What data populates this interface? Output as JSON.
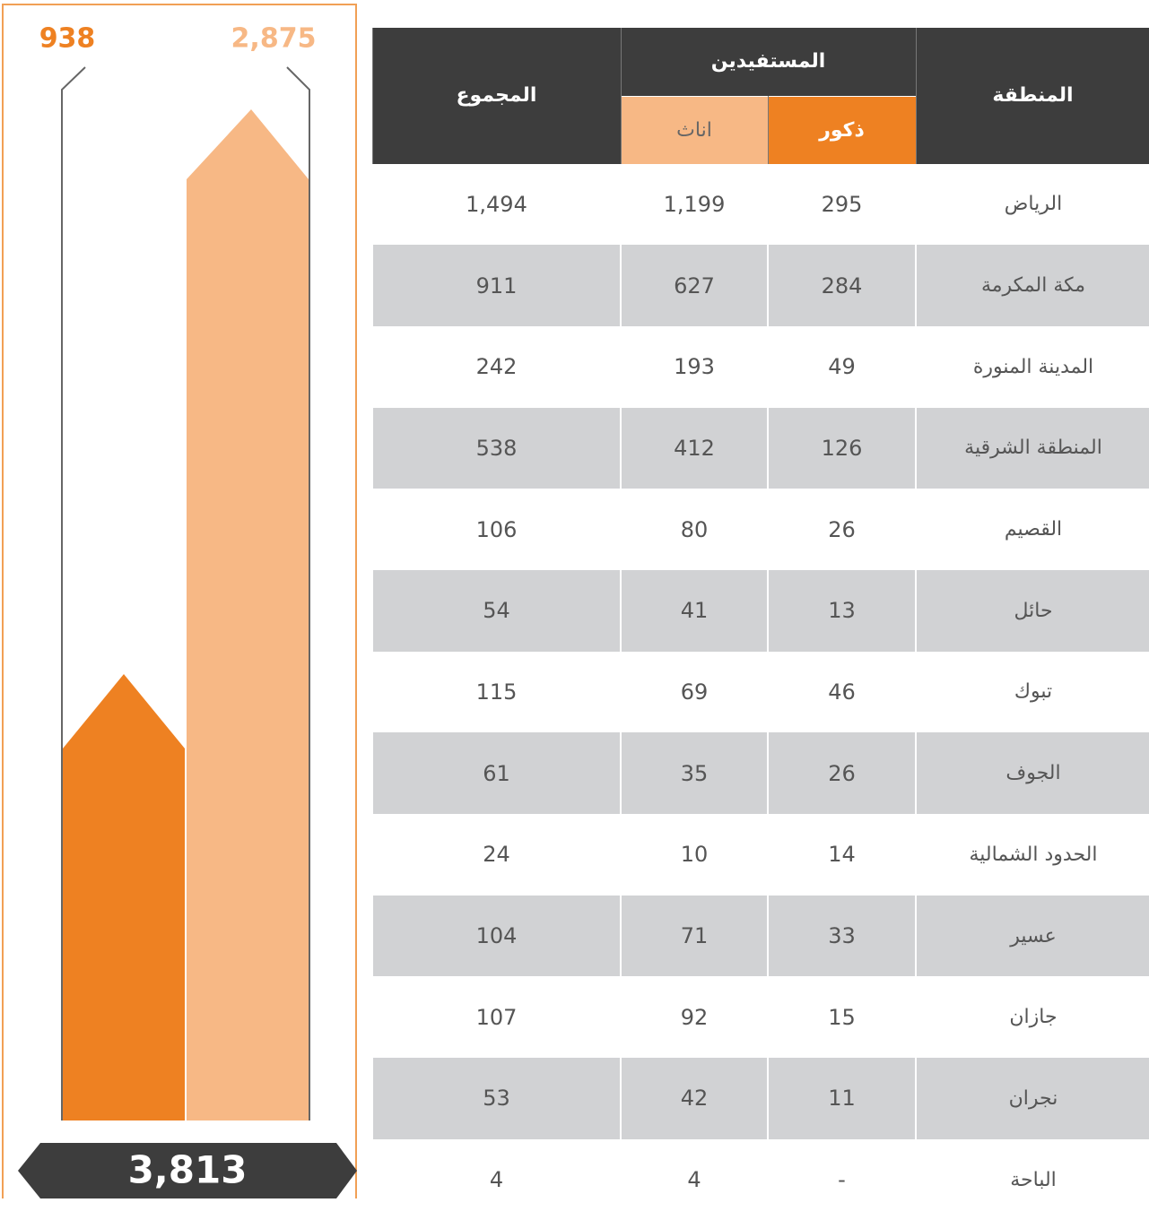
{
  "summary": {
    "males": "938",
    "females": "2,875",
    "total": "3,813"
  },
  "table": {
    "headers": {
      "region": "المنطقة",
      "beneficiaries": "المستفيدين",
      "males": "ذكور",
      "females": "اناث",
      "total": "المجموع"
    },
    "rows": [
      [
        "الرياض",
        "295",
        "1,199",
        "1,494"
      ],
      [
        "مكة المكرمة",
        "284",
        "627",
        "911"
      ],
      [
        "المدينة المنورة",
        "49",
        "193",
        "242"
      ],
      [
        "المنطقة الشرقية",
        "126",
        "412",
        "538"
      ],
      [
        "القصيم",
        "26",
        "80",
        "106"
      ],
      [
        "حائل",
        "13",
        "41",
        "54"
      ],
      [
        "تبوك",
        "46",
        "69",
        "115"
      ],
      [
        "الجوف",
        "26",
        "35",
        "61"
      ],
      [
        "الحدود الشمالية",
        "14",
        "10",
        "24"
      ],
      [
        "عسير",
        "33",
        "71",
        "104"
      ],
      [
        "جازان",
        "15",
        "92",
        "107"
      ],
      [
        "نجران",
        "11",
        "42",
        "53"
      ],
      [
        "الباحة",
        "-",
        "4",
        "4"
      ]
    ]
  }
}
